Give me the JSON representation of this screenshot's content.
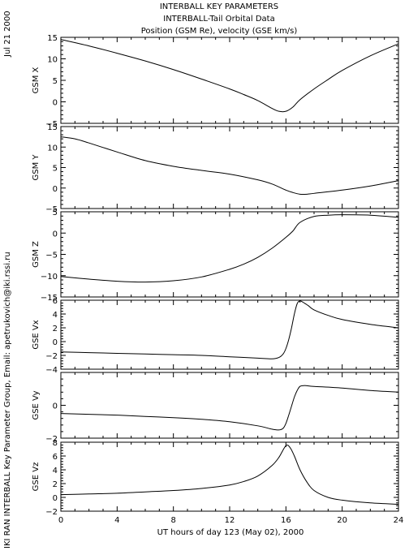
{
  "header": {
    "date": "Jul 21 2000",
    "title_lines": [
      "INTERBALL KEY PARAMETERS",
      "INTERBALL-Tail Orbital Data",
      "Position (GSM Re), velocity (GSE km/s)"
    ]
  },
  "side_credit": "IKI RAN INTERBALL Key Parameter Group, Email: apetrukovich@iki.rssi.ru",
  "xlabel": "UT hours of day 123 (May 02), 2000",
  "chart_data": [
    {
      "type": "line",
      "ylabel": "GSM X",
      "xlim": [
        0,
        24
      ],
      "ylim": [
        -5,
        15
      ],
      "xticks": [
        0,
        4,
        8,
        12,
        16,
        20,
        24
      ],
      "yticks": [
        -5,
        0,
        5,
        10,
        15
      ],
      "x": [
        0,
        2,
        4,
        6,
        8,
        10,
        12,
        13,
        14,
        15,
        15.5,
        16,
        16.5,
        17,
        18,
        19,
        20,
        22,
        24
      ],
      "values": [
        14.5,
        13.0,
        11.3,
        9.5,
        7.5,
        5.3,
        3.0,
        1.7,
        0.3,
        -1.5,
        -2.2,
        -2.2,
        -1.2,
        0.5,
        3.0,
        5.2,
        7.3,
        10.7,
        13.5
      ]
    },
    {
      "type": "line",
      "ylabel": "GSM Y",
      "xlim": [
        0,
        24
      ],
      "ylim": [
        -5,
        15
      ],
      "xticks": [
        0,
        4,
        8,
        12,
        16,
        20,
        24
      ],
      "yticks": [
        -5,
        0,
        5,
        10,
        15
      ],
      "x": [
        0,
        1,
        2,
        4,
        6,
        8,
        10,
        12,
        14,
        15,
        16,
        16.5,
        17,
        17.5,
        18,
        20,
        22,
        24
      ],
      "values": [
        12.5,
        12.0,
        11.0,
        8.8,
        6.7,
        5.3,
        4.3,
        3.4,
        2.0,
        1.0,
        -0.5,
        -1.1,
        -1.5,
        -1.5,
        -1.3,
        -0.5,
        0.5,
        1.8
      ]
    },
    {
      "type": "line",
      "ylabel": "GSM Z",
      "xlim": [
        0,
        24
      ],
      "ylim": [
        -15,
        5
      ],
      "xticks": [
        0,
        4,
        8,
        12,
        16,
        20,
        24
      ],
      "yticks": [
        -15,
        -10,
        -5,
        0,
        5
      ],
      "x": [
        0,
        2,
        4,
        6,
        8,
        10,
        12,
        13,
        14,
        15,
        16,
        16.5,
        17,
        18,
        19,
        20,
        22,
        24
      ],
      "values": [
        -10.2,
        -10.8,
        -11.3,
        -11.5,
        -11.2,
        -10.3,
        -8.5,
        -7.3,
        -5.7,
        -3.6,
        -1.0,
        0.5,
        2.5,
        3.9,
        4.2,
        4.3,
        4.2,
        3.7
      ]
    },
    {
      "type": "line",
      "ylabel": "GSE Vx",
      "xlim": [
        0,
        24
      ],
      "ylim": [
        -4,
        6
      ],
      "xticks": [
        0,
        4,
        8,
        12,
        16,
        20,
        24
      ],
      "yticks": [
        -4,
        -2,
        0,
        2,
        4,
        6
      ],
      "x": [
        0,
        2,
        4,
        6,
        8,
        10,
        12,
        14,
        15,
        15.5,
        15.8,
        16.0,
        16.2,
        16.4,
        16.6,
        16.8,
        17.0,
        17.3,
        17.6,
        18,
        19,
        20,
        22,
        24
      ],
      "values": [
        -1.5,
        -1.6,
        -1.7,
        -1.8,
        -1.9,
        -2.0,
        -2.2,
        -2.4,
        -2.5,
        -2.3,
        -1.8,
        -1.0,
        0.3,
        2.0,
        4.0,
        5.5,
        5.9,
        5.6,
        5.2,
        4.6,
        3.8,
        3.2,
        2.5,
        2.0
      ]
    },
    {
      "type": "line",
      "ylabel": "GSE Vy",
      "xlim": [
        0,
        24
      ],
      "ylim": [
        -2,
        2
      ],
      "xticks": [
        0,
        4,
        8,
        12,
        16,
        20,
        24
      ],
      "yticks": [
        -2,
        0
      ],
      "x": [
        0,
        2,
        4,
        6,
        8,
        10,
        12,
        14,
        15,
        15.5,
        15.8,
        16.0,
        16.2,
        16.4,
        16.6,
        16.8,
        17.0,
        17.3,
        17.6,
        18,
        20,
        22,
        24
      ],
      "values": [
        -0.5,
        -0.55,
        -0.6,
        -0.68,
        -0.75,
        -0.85,
        -1.0,
        -1.25,
        -1.45,
        -1.5,
        -1.4,
        -1.1,
        -0.6,
        -0.05,
        0.5,
        0.9,
        1.15,
        1.2,
        1.18,
        1.15,
        1.05,
        0.9,
        0.8
      ]
    },
    {
      "type": "line",
      "ylabel": "GSE Vz",
      "xlim": [
        0,
        24
      ],
      "ylim": [
        -2,
        8
      ],
      "xticks": [
        0,
        4,
        8,
        12,
        16,
        20,
        24
      ],
      "yticks": [
        -2,
        0,
        2,
        4,
        6,
        8
      ],
      "x": [
        0,
        2,
        4,
        6,
        8,
        10,
        12,
        13,
        14,
        15,
        15.5,
        16.0,
        16.3,
        16.6,
        17.0,
        17.5,
        18,
        19,
        20,
        22,
        24
      ],
      "values": [
        0.4,
        0.5,
        0.6,
        0.8,
        1.0,
        1.3,
        1.8,
        2.3,
        3.1,
        4.6,
        5.8,
        7.5,
        7.2,
        6.0,
        4.0,
        2.2,
        1.0,
        0.0,
        -0.4,
        -0.8,
        -1.0
      ]
    }
  ]
}
